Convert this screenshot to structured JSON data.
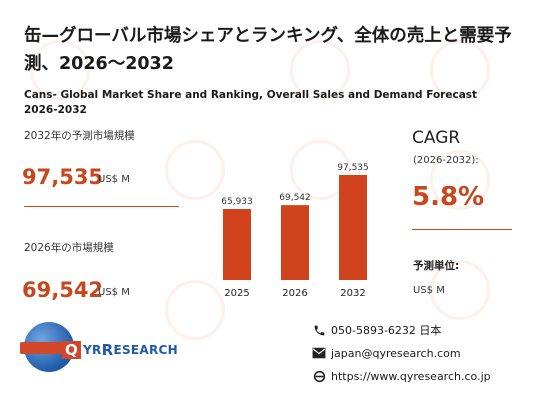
{
  "title_jp": "缶—グローバル市場シェアとランキング、全体の売上と需要予測、2026〜2032",
  "title_en": "Cans- Global Market Share and Ranking, Overall Sales and Demand Forecast 2026-2032",
  "forecast": {
    "label": "2032年の予測市場規模",
    "value": "97,535",
    "unit": "US$ M"
  },
  "current": {
    "label": "2026年の市場規模",
    "value": "69,542",
    "unit": "US$ M"
  },
  "chart_data": {
    "type": "bar",
    "categories": [
      "2025",
      "2026",
      "2032"
    ],
    "values": [
      65933,
      69542,
      97535
    ],
    "value_labels": [
      "65,933",
      "69,542",
      "97,535"
    ],
    "bar_color": "#d0431c"
  },
  "cagr": {
    "title": "CAGR",
    "range": "(2026-2032):",
    "value": "5.8%"
  },
  "unit": {
    "label": "予測単位:",
    "value": "US$ M"
  },
  "logo": {
    "q": "Q",
    "rest": "YR",
    "big": "R",
    "tail": "ESEARCH"
  },
  "contact": {
    "phone": "050-5893-6232 日本",
    "email": "japan@qyresearch.com",
    "web": "https://www.qyresearch.co.jp"
  },
  "colors": {
    "accent": "#c8471d",
    "brand_blue": "#1f5aa8"
  }
}
